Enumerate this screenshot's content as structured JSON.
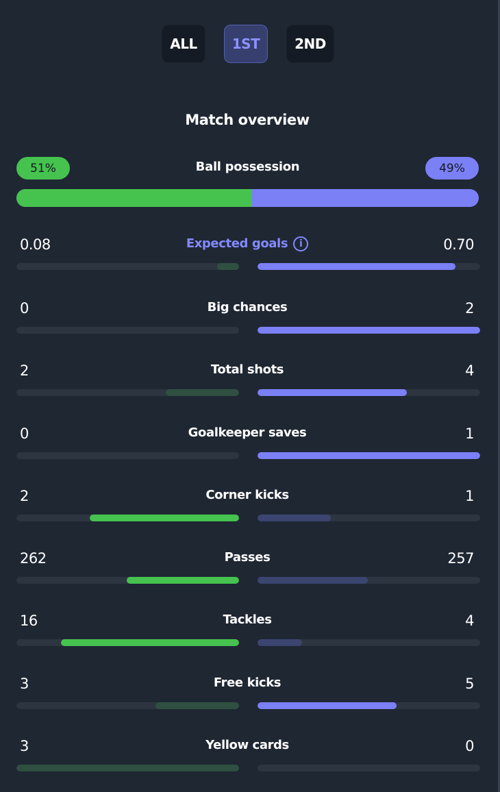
{
  "tabs": [
    {
      "label": "ALL",
      "active": false
    },
    {
      "label": "1ST",
      "active": true
    },
    {
      "label": "2ND",
      "active": false
    }
  ],
  "title": "Match overview",
  "possession": {
    "label": "Ball possession",
    "home": "51%",
    "away": "49%",
    "home_fraction": 0.51,
    "home_color": "#46c24f",
    "away_color": "#7b80f6"
  },
  "stats": [
    {
      "label": "Expected goals",
      "home": "0.08",
      "away": "0.70",
      "home_fill": 0.1,
      "away_fill": 0.89,
      "winner": "away",
      "accent": true,
      "info_icon": "info-icon"
    },
    {
      "label": "Big chances",
      "home": "0",
      "away": "2",
      "home_fill": 0,
      "away_fill": 1.0,
      "winner": "away"
    },
    {
      "label": "Total shots",
      "home": "2",
      "away": "4",
      "home_fill": 0.33,
      "away_fill": 0.67,
      "winner": "away"
    },
    {
      "label": "Goalkeeper saves",
      "home": "0",
      "away": "1",
      "home_fill": 0,
      "away_fill": 1.0,
      "winner": "away"
    },
    {
      "label": "Corner kicks",
      "home": "2",
      "away": "1",
      "home_fill": 0.67,
      "away_fill": 0.33,
      "winner": "home"
    },
    {
      "label": "Passes",
      "home": "262",
      "away": "257",
      "home_fill": 0.505,
      "away_fill": 0.495,
      "winner": "home"
    },
    {
      "label": "Tackles",
      "home": "16",
      "away": "4",
      "home_fill": 0.8,
      "away_fill": 0.2,
      "winner": "home"
    },
    {
      "label": "Free kicks",
      "home": "3",
      "away": "5",
      "home_fill": 0.375,
      "away_fill": 0.625,
      "winner": "away"
    },
    {
      "label": "Yellow cards",
      "home": "3",
      "away": "0",
      "home_fill": 1.0,
      "away_fill": 0,
      "winner": "home",
      "muted": true
    }
  ],
  "colors": {
    "home_strong": "#46c24f",
    "home_muted": "#2f5040",
    "away_strong": "#7b80f6",
    "away_muted": "#3b4570",
    "track": "#2c3540"
  }
}
